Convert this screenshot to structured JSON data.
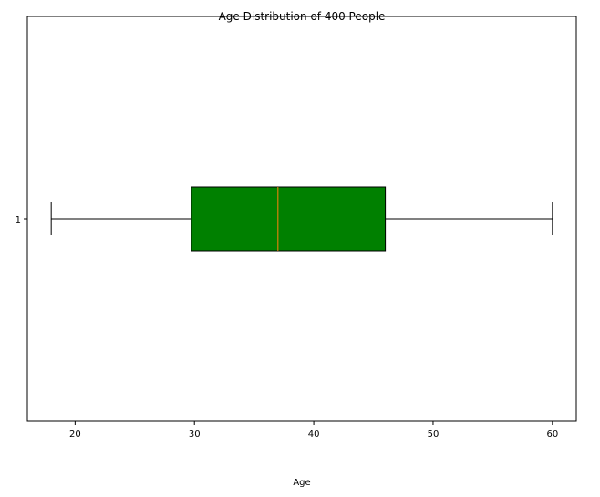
{
  "chart_data": {
    "type": "box",
    "orientation": "horizontal",
    "title": "Age Distribution of 400 People",
    "xlabel": "Age",
    "ylabel": "",
    "xlim": [
      16.0,
      62.0
    ],
    "xticks": [
      20,
      30,
      40,
      50,
      60
    ],
    "yticks": [
      "1"
    ],
    "grid": false,
    "boxes": [
      {
        "category": "1",
        "whisker_low": 18,
        "q1": 29.75,
        "median": 37,
        "q3": 46,
        "whisker_high": 60
      }
    ],
    "colors": {
      "box_fill": "#008000",
      "median_line": "#ff7f0e",
      "edge": "#000000"
    }
  }
}
